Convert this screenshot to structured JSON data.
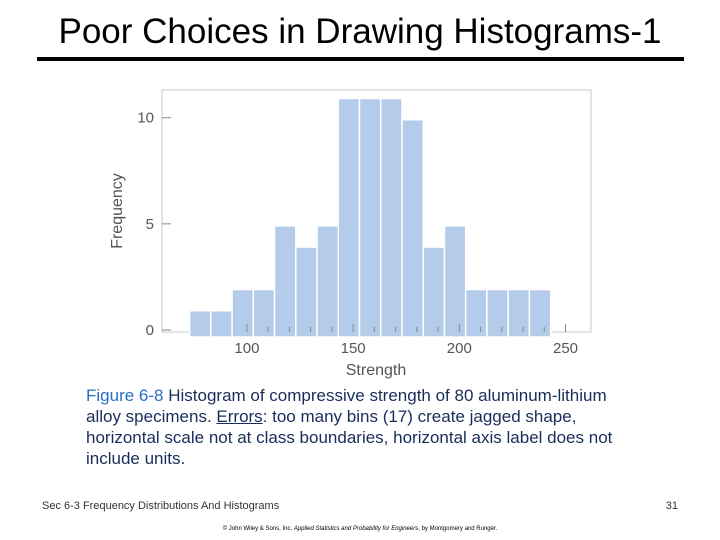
{
  "slide": {
    "title": "Poor Choices in Drawing Histograms-1"
  },
  "caption": {
    "figure_label": "Figure 6-8",
    "text_1": "Histogram of compressive strength of 80 aluminum-lithium alloy specimens.",
    "errors_label": "Errors",
    "text_2": ":  too many bins (17) create jagged shape, horizontal scale not at class boundaries, horizontal axis label does not include units."
  },
  "footer": {
    "section": "Sec 6-3 Frequency Distributions And Histograms",
    "page_number": "31",
    "copyright_prefix": "© John Wiley & Sons, Inc. ",
    "copyright_book": "Applied Statistics and Probability for Engineers",
    "copyright_suffix": ", by Montgomery and Runger."
  },
  "chart_data": {
    "type": "bar",
    "xlabel": "Strength",
    "ylabel": "Frequency",
    "xlim": [
      60,
      262
    ],
    "ylim": [
      0,
      11.4
    ],
    "xticks": [
      100,
      150,
      200,
      250
    ],
    "yticks": [
      0,
      5,
      10
    ],
    "bin_edges": [
      73,
      83,
      93,
      103,
      113,
      123,
      133,
      143,
      153,
      163,
      173,
      183,
      193,
      203,
      213,
      223,
      233,
      243
    ],
    "values": [
      1,
      1,
      2,
      2,
      5,
      4,
      5,
      11,
      11,
      11,
      10,
      4,
      5,
      2,
      2,
      2,
      2
    ],
    "bar_color": "#b4cbea",
    "grid": false
  }
}
